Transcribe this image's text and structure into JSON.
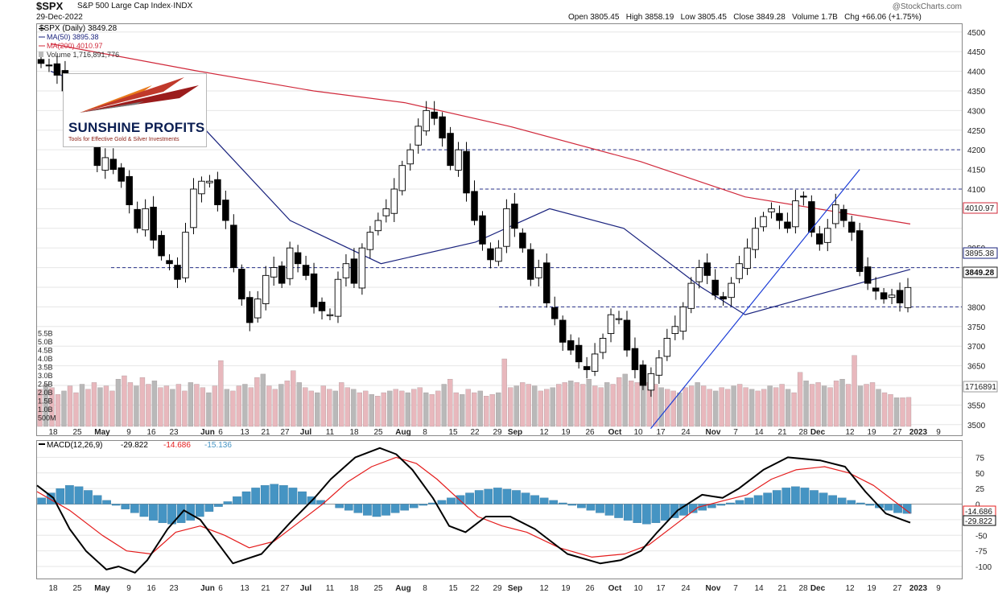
{
  "header": {
    "ticker": "$SPX",
    "name": "S&P 500 Large Cap Index",
    "exchange": "INDX",
    "date": "29-Dec-2022",
    "copyright": "@StockCharts.com",
    "open_label": "Open",
    "open": "3805.45",
    "high_label": "High",
    "high": "3858.19",
    "low_label": "Low",
    "low": "3805.45",
    "close_label": "Close",
    "close": "3849.28",
    "volume_label": "Volume",
    "volume": "1.7B",
    "chg_label": "Chg",
    "chg": "+66.06 (+1.75%)"
  },
  "legend": {
    "price": "$SPX (Daily) 3849.28",
    "ma50": "MA(50) 3895.38",
    "ma200": "MA(200) 4010.97",
    "volume": "Volume 1,716,891,776"
  },
  "logo": {
    "title": "SUNSHINE PROFITS",
    "subtitle": "Tools for Effective Gold & Silver Investments"
  },
  "macd_legend": {
    "label": "MACD(12,26,9)",
    "macd": "-29.822",
    "signal": "-14.686",
    "hist": "-15.136"
  },
  "badges": {
    "ma200": "4010.97",
    "ma50": "3895.38",
    "close": "3849.28",
    "volume": "1716891",
    "macd_signal": "-14.686",
    "macd": "-29.822"
  },
  "colors": {
    "up": "#ffffff",
    "down": "#000000",
    "ma50": "#1a237e",
    "ma200": "#d0283a",
    "vol_up": "#b9b9b9",
    "vol_down": "#e8b8bd",
    "hist": "#4594c3",
    "macd_line": "#000000",
    "signal_line": "#e41c1c",
    "trend": "#1c3dd6",
    "hline": "#27318a",
    "grid": "#e6e6e6"
  },
  "x_labels": [
    "18",
    "25",
    "May",
    "9",
    "16",
    "23",
    "Jun",
    "6",
    "13",
    "21",
    "27",
    "Jul",
    "11",
    "18",
    "25",
    "Aug",
    "8",
    "15",
    "22",
    "29",
    "Sep",
    "12",
    "19",
    "26",
    "Oct",
    "10",
    "17",
    "24",
    "Nov",
    "7",
    "14",
    "21",
    "28",
    "Dec",
    "12",
    "19",
    "27",
    "2023",
    "9"
  ],
  "chart_data": [
    {
      "type": "candlestick",
      "title": "$SPX (Daily)",
      "y_range": [
        3475,
        4520
      ],
      "y_ticks": [
        3500,
        3550,
        3600,
        3650,
        3700,
        3750,
        3800,
        3850,
        3900,
        3950,
        4000,
        4050,
        4100,
        4150,
        4200,
        4250,
        4300,
        4350,
        4400,
        4450,
        4500
      ],
      "y_tick_labels": [
        "3500",
        "3550",
        "3600",
        "3650",
        "3700",
        "3750",
        "3800",
        "",
        "",
        "3950",
        "",
        "4050",
        "4100",
        "4150",
        "4200",
        "4250",
        "4300",
        "4350",
        "4400",
        "4450",
        "4500"
      ],
      "horizontal_lines": [
        4200,
        4100,
        3900,
        3800
      ],
      "close_path": [
        4420,
        4415,
        4390,
        4350,
        4310,
        4280,
        4230,
        4160,
        4180,
        4150,
        4120,
        4060,
        4000,
        4050,
        3970,
        3930,
        3910,
        3870,
        3990,
        4100,
        4120,
        4120,
        4060,
        4020,
        3900,
        3820,
        3760,
        3820,
        3880,
        3900,
        3860,
        3950,
        3910,
        3880,
        3800,
        3790,
        3780,
        3870,
        3910,
        3860,
        3950,
        3990,
        4020,
        4050,
        4100,
        4160,
        4200,
        4260,
        4300,
        4280,
        4230,
        4160,
        4200,
        4090,
        4020,
        3960,
        3920,
        3950,
        4050,
        4000,
        3950,
        3870,
        3900,
        3810,
        3770,
        3710,
        3690,
        3660,
        3640,
        3680,
        3720,
        3780,
        3770,
        3690,
        3640,
        3600,
        3630,
        3670,
        3720,
        3750,
        3800,
        3860,
        3900,
        3880,
        3830,
        3820,
        3860,
        3910,
        3950,
        4000,
        4030,
        4050,
        4020,
        4000,
        4070,
        4080,
        3990,
        3960,
        4000,
        4060,
        4020,
        3990,
        3890,
        3860,
        3840,
        3820,
        3830,
        3810,
        3849.28
      ],
      "ma50": [
        {
          "x": "Apr 18",
          "y": 4400
        },
        {
          "x": "Jun 3",
          "y": 4250
        },
        {
          "x": "Jun 28",
          "y": 4020
        },
        {
          "x": "Jul 25",
          "y": 3910
        },
        {
          "x": "Aug 22",
          "y": 3965
        },
        {
          "x": "Sep 13",
          "y": 4050
        },
        {
          "x": "Oct 5",
          "y": 4000
        },
        {
          "x": "Oct 28",
          "y": 3850
        },
        {
          "x": "Nov 10",
          "y": 3780
        },
        {
          "x": "Dec 1",
          "y": 3830
        },
        {
          "x": "Dec 29",
          "y": 3895.38
        }
      ],
      "ma200": [
        {
          "x": "Apr 18",
          "y": 4470
        },
        {
          "x": "Jun 1",
          "y": 4400
        },
        {
          "x": "Jul 5",
          "y": 4350
        },
        {
          "x": "Aug 1",
          "y": 4320
        },
        {
          "x": "Sep 1",
          "y": 4260
        },
        {
          "x": "Oct 10",
          "y": 4170
        },
        {
          "x": "Nov 10",
          "y": 4080
        },
        {
          "x": "Dec 29",
          "y": 4010.97
        }
      ],
      "trendline": [
        {
          "x": "Oct 13",
          "y": 3490
        },
        {
          "x": "Dec 14",
          "y": 4150
        }
      ],
      "volume_axis_labels": [
        "5.5B",
        "5.0B",
        "4.5B",
        "4.0B",
        "3.5B",
        "3.0B",
        "2.5B",
        "2.0B",
        "1.5B",
        "1.0B",
        "500M"
      ],
      "volume_billions": [
        2.2,
        2.5,
        2.3,
        1.9,
        2.1,
        2.4,
        2.0,
        2.5,
        2.2,
        2.6,
        2.3,
        2.4,
        2.1,
        2.8,
        3.0,
        2.6,
        2.4,
        2.9,
        2.5,
        2.7,
        2.3,
        2.4,
        2.2,
        2.5,
        2.1,
        2.6,
        2.5,
        2.3,
        2.0,
        2.4,
        3.9,
        2.2,
        2.1,
        2.4,
        2.5,
        2.3,
        2.9,
        3.1,
        2.4,
        2.2,
        2.5,
        2.7,
        3.3,
        2.6,
        2.3,
        2.1,
        2.0,
        2.4,
        2.2,
        2.1,
        2.6,
        2.3,
        2.2,
        2.0,
        2.1,
        1.9,
        1.8,
        2.0,
        2.1,
        2.2,
        2.1,
        2.0,
        2.2,
        2.3,
        2.0,
        1.9,
        2.1,
        2.5,
        2.8,
        2.0,
        1.9,
        2.2,
        2.0,
        2.1,
        1.8,
        1.9,
        2.0,
        4.0,
        2.3,
        2.4,
        2.6,
        2.5,
        2.4,
        2.1,
        2.2,
        2.3,
        2.5,
        2.6,
        2.7,
        2.6,
        2.5,
        2.8,
        2.4,
        2.3,
        2.6,
        2.5,
        2.9,
        3.1,
        2.7,
        2.6,
        2.8,
        2.6,
        2.5,
        2.3,
        2.2,
        2.1,
        2.0,
        2.3,
        2.4,
        2.6,
        2.4,
        2.2,
        2.1,
        2.3,
        2.2,
        2.4,
        2.5,
        2.3,
        2.2,
        2.1,
        2.2,
        2.4,
        2.3,
        2.5,
        2.2,
        2.0,
        3.2,
        2.7,
        2.5,
        2.6,
        2.4,
        2.3,
        2.7,
        2.8,
        2.5,
        4.2,
        2.4,
        2.5,
        2.6,
        2.2,
        2.0,
        1.9,
        1.7,
        1.7,
        1.72
      ]
    },
    {
      "type": "line",
      "title": "MACD(12,26,9)",
      "y_range": [
        -118,
        100
      ],
      "y_ticks": [
        -100,
        -75,
        -50,
        -25,
        0,
        25,
        50,
        75
      ],
      "series": [
        {
          "name": "MACD(12,26,9)",
          "values_note_free": true,
          "points": [
            [
              0,
              30
            ],
            [
              4,
              10
            ],
            [
              8,
              -40
            ],
            [
              12,
              -75
            ],
            [
              17,
              -105
            ],
            [
              20,
              -100
            ],
            [
              24,
              -110
            ],
            [
              27,
              -90
            ],
            [
              32,
              -40
            ],
            [
              36,
              -10
            ],
            [
              40,
              -25
            ],
            [
              44,
              -60
            ],
            [
              48,
              -95
            ],
            [
              55,
              -80
            ],
            [
              62,
              -30
            ],
            [
              68,
              10
            ],
            [
              72,
              40
            ],
            [
              78,
              75
            ],
            [
              84,
              90
            ],
            [
              88,
              80
            ],
            [
              92,
              55
            ],
            [
              97,
              10
            ],
            [
              101,
              -35
            ],
            [
              105,
              -45
            ],
            [
              110,
              -20
            ],
            [
              116,
              -20
            ],
            [
              122,
              -40
            ],
            [
              130,
              -80
            ],
            [
              138,
              -95
            ],
            [
              143,
              -90
            ],
            [
              148,
              -75
            ],
            [
              152,
              -45
            ],
            [
              157,
              -10
            ],
            [
              163,
              15
            ],
            [
              168,
              10
            ],
            [
              172,
              25
            ],
            [
              178,
              55
            ],
            [
              184,
              75
            ],
            [
              192,
              70
            ],
            [
              198,
              60
            ],
            [
              203,
              20
            ],
            [
              208,
              -15
            ],
            [
              212,
              -25
            ],
            [
              214,
              -29.822
            ]
          ]
        },
        {
          "name": "Signal",
          "points": [
            [
              0,
              20
            ],
            [
              8,
              -10
            ],
            [
              16,
              -50
            ],
            [
              22,
              -75
            ],
            [
              28,
              -80
            ],
            [
              34,
              -45
            ],
            [
              40,
              -35
            ],
            [
              46,
              -50
            ],
            [
              52,
              -70
            ],
            [
              58,
              -60
            ],
            [
              64,
              -30
            ],
            [
              70,
              0
            ],
            [
              76,
              35
            ],
            [
              82,
              60
            ],
            [
              88,
              75
            ],
            [
              93,
              65
            ],
            [
              98,
              40
            ],
            [
              103,
              10
            ],
            [
              108,
              -20
            ],
            [
              114,
              -35
            ],
            [
              120,
              -45
            ],
            [
              128,
              -70
            ],
            [
              136,
              -85
            ],
            [
              144,
              -80
            ],
            [
              150,
              -65
            ],
            [
              156,
              -35
            ],
            [
              162,
              -5
            ],
            [
              168,
              5
            ],
            [
              174,
              15
            ],
            [
              180,
              40
            ],
            [
              186,
              55
            ],
            [
              193,
              60
            ],
            [
              199,
              50
            ],
            [
              205,
              30
            ],
            [
              210,
              5
            ],
            [
              214,
              -14.686
            ]
          ]
        }
      ],
      "histogram": [
        10,
        18,
        25,
        30,
        28,
        22,
        14,
        6,
        -2,
        -8,
        -14,
        -20,
        -26,
        -30,
        -32,
        -30,
        -26,
        -20,
        -12,
        -4,
        4,
        12,
        20,
        26,
        30,
        32,
        30,
        26,
        20,
        12,
        6,
        0,
        -6,
        -10,
        -14,
        -18,
        -20,
        -18,
        -14,
        -10,
        -6,
        -2,
        2,
        6,
        10,
        14,
        18,
        22,
        24,
        26,
        24,
        22,
        18,
        14,
        10,
        6,
        2,
        -2,
        -6,
        -10,
        -14,
        -18,
        -22,
        -26,
        -30,
        -32,
        -30,
        -26,
        -22,
        -18,
        -14,
        -10,
        -6,
        -2,
        2,
        6,
        10,
        14,
        18,
        22,
        26,
        28,
        26,
        22,
        18,
        14,
        10,
        6,
        2,
        -2,
        -6,
        -10,
        -14,
        -15
      ]
    }
  ]
}
